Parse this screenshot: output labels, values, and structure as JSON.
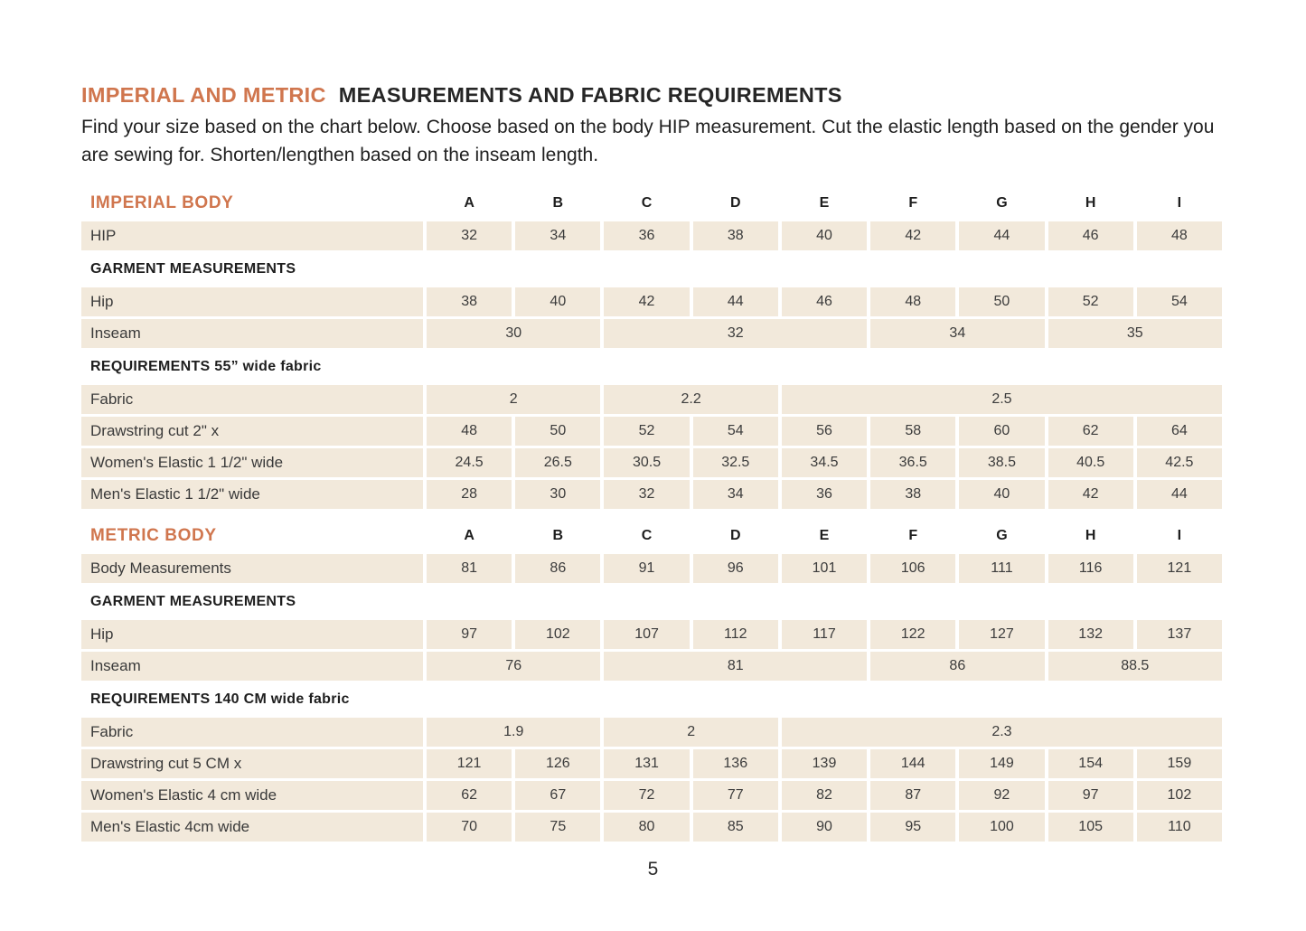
{
  "document": {
    "title_accent": "IMPERIAL AND METRIC",
    "title_main": "MEASUREMENTS AND FABRIC REQUIREMENTS",
    "intro": "Find your size based on the chart below. Choose based on the body HIP measurement. Cut the elastic length based on the gender you are sewing for. Shorten/lengthen based on the inseam length.",
    "page_number": "5"
  },
  "colors": {
    "accent": "#D0764E",
    "row_bg": "#F2E9DB",
    "heading_text": "#262626",
    "body_text": "#3a3a3a"
  },
  "size_columns": [
    "A",
    "B",
    "C",
    "D",
    "E",
    "F",
    "G",
    "H",
    "I"
  ],
  "tables": [
    {
      "name": "imperial",
      "header_label": "IMPERIAL BODY",
      "rows": [
        {
          "type": "data",
          "label": "HIP",
          "cells": [
            {
              "v": "32"
            },
            {
              "v": "34"
            },
            {
              "v": "36"
            },
            {
              "v": "38"
            },
            {
              "v": "40"
            },
            {
              "v": "42"
            },
            {
              "v": "44"
            },
            {
              "v": "46"
            },
            {
              "v": "48"
            }
          ]
        },
        {
          "type": "section",
          "label": "GARMENT MEASUREMENTS"
        },
        {
          "type": "data",
          "label": "Hip",
          "cells": [
            {
              "v": "38"
            },
            {
              "v": "40"
            },
            {
              "v": "42"
            },
            {
              "v": "44"
            },
            {
              "v": "46"
            },
            {
              "v": "48"
            },
            {
              "v": "50"
            },
            {
              "v": "52"
            },
            {
              "v": "54"
            }
          ]
        },
        {
          "type": "data",
          "label": "Inseam",
          "cells": [
            {
              "v": "30",
              "span": 2
            },
            {
              "v": "32",
              "span": 3
            },
            {
              "v": "34",
              "span": 2
            },
            {
              "v": "35",
              "span": 2
            }
          ]
        },
        {
          "type": "section",
          "label": "REQUIREMENTS 55” wide fabric"
        },
        {
          "type": "data",
          "label": "Fabric",
          "cells": [
            {
              "v": "2",
              "span": 2
            },
            {
              "v": "2.2",
              "span": 2
            },
            {
              "v": "2.5",
              "span": 5
            }
          ]
        },
        {
          "type": "data",
          "label": "Drawstring cut 2\" x",
          "cells": [
            {
              "v": "48"
            },
            {
              "v": "50"
            },
            {
              "v": "52"
            },
            {
              "v": "54"
            },
            {
              "v": "56"
            },
            {
              "v": "58"
            },
            {
              "v": "60"
            },
            {
              "v": "62"
            },
            {
              "v": "64"
            }
          ]
        },
        {
          "type": "data",
          "label": "Women's Elastic 1 1/2\" wide",
          "cells": [
            {
              "v": "24.5"
            },
            {
              "v": "26.5"
            },
            {
              "v": "30.5"
            },
            {
              "v": "32.5"
            },
            {
              "v": "34.5"
            },
            {
              "v": "36.5"
            },
            {
              "v": "38.5"
            },
            {
              "v": "40.5"
            },
            {
              "v": "42.5"
            }
          ]
        },
        {
          "type": "data",
          "label": "Men's Elastic 1 1/2\" wide",
          "cells": [
            {
              "v": "28"
            },
            {
              "v": "30"
            },
            {
              "v": "32"
            },
            {
              "v": "34"
            },
            {
              "v": "36"
            },
            {
              "v": "38"
            },
            {
              "v": "40"
            },
            {
              "v": "42"
            },
            {
              "v": "44"
            }
          ]
        }
      ]
    },
    {
      "name": "metric",
      "header_label": "METRIC BODY",
      "rows": [
        {
          "type": "data",
          "label": "Body Measurements",
          "cells": [
            {
              "v": "81"
            },
            {
              "v": "86"
            },
            {
              "v": "91"
            },
            {
              "v": "96"
            },
            {
              "v": "101"
            },
            {
              "v": "106"
            },
            {
              "v": "111"
            },
            {
              "v": "116"
            },
            {
              "v": "121"
            }
          ]
        },
        {
          "type": "section",
          "label": "GARMENT MEASUREMENTS"
        },
        {
          "type": "data",
          "label": "Hip",
          "cells": [
            {
              "v": "97"
            },
            {
              "v": "102"
            },
            {
              "v": "107"
            },
            {
              "v": "112"
            },
            {
              "v": "117"
            },
            {
              "v": "122"
            },
            {
              "v": "127"
            },
            {
              "v": "132"
            },
            {
              "v": "137"
            }
          ]
        },
        {
          "type": "data",
          "label": "Inseam",
          "cells": [
            {
              "v": "76",
              "span": 2
            },
            {
              "v": "81",
              "span": 3
            },
            {
              "v": "86",
              "span": 2
            },
            {
              "v": "88.5",
              "span": 2
            }
          ]
        },
        {
          "type": "section",
          "label": "REQUIREMENTS 140 CM wide fabric"
        },
        {
          "type": "data",
          "label": "Fabric",
          "cells": [
            {
              "v": "1.9",
              "span": 2
            },
            {
              "v": "2",
              "span": 2
            },
            {
              "v": "2.3",
              "span": 5
            }
          ]
        },
        {
          "type": "data",
          "label": "Drawstring cut 5 CM x",
          "cells": [
            {
              "v": "121"
            },
            {
              "v": "126"
            },
            {
              "v": "131"
            },
            {
              "v": "136"
            },
            {
              "v": "139"
            },
            {
              "v": "144"
            },
            {
              "v": "149"
            },
            {
              "v": "154"
            },
            {
              "v": "159"
            }
          ]
        },
        {
          "type": "data",
          "label": "Women's Elastic 4 cm wide",
          "cells": [
            {
              "v": "62"
            },
            {
              "v": "67"
            },
            {
              "v": "72"
            },
            {
              "v": "77"
            },
            {
              "v": "82"
            },
            {
              "v": "87"
            },
            {
              "v": "92"
            },
            {
              "v": "97"
            },
            {
              "v": "102"
            }
          ]
        },
        {
          "type": "data",
          "label": "Men's Elastic 4cm wide",
          "cells": [
            {
              "v": "70"
            },
            {
              "v": "75"
            },
            {
              "v": "80"
            },
            {
              "v": "85"
            },
            {
              "v": "90"
            },
            {
              "v": "95"
            },
            {
              "v": "100"
            },
            {
              "v": "105"
            },
            {
              "v": "110"
            }
          ]
        }
      ]
    }
  ]
}
